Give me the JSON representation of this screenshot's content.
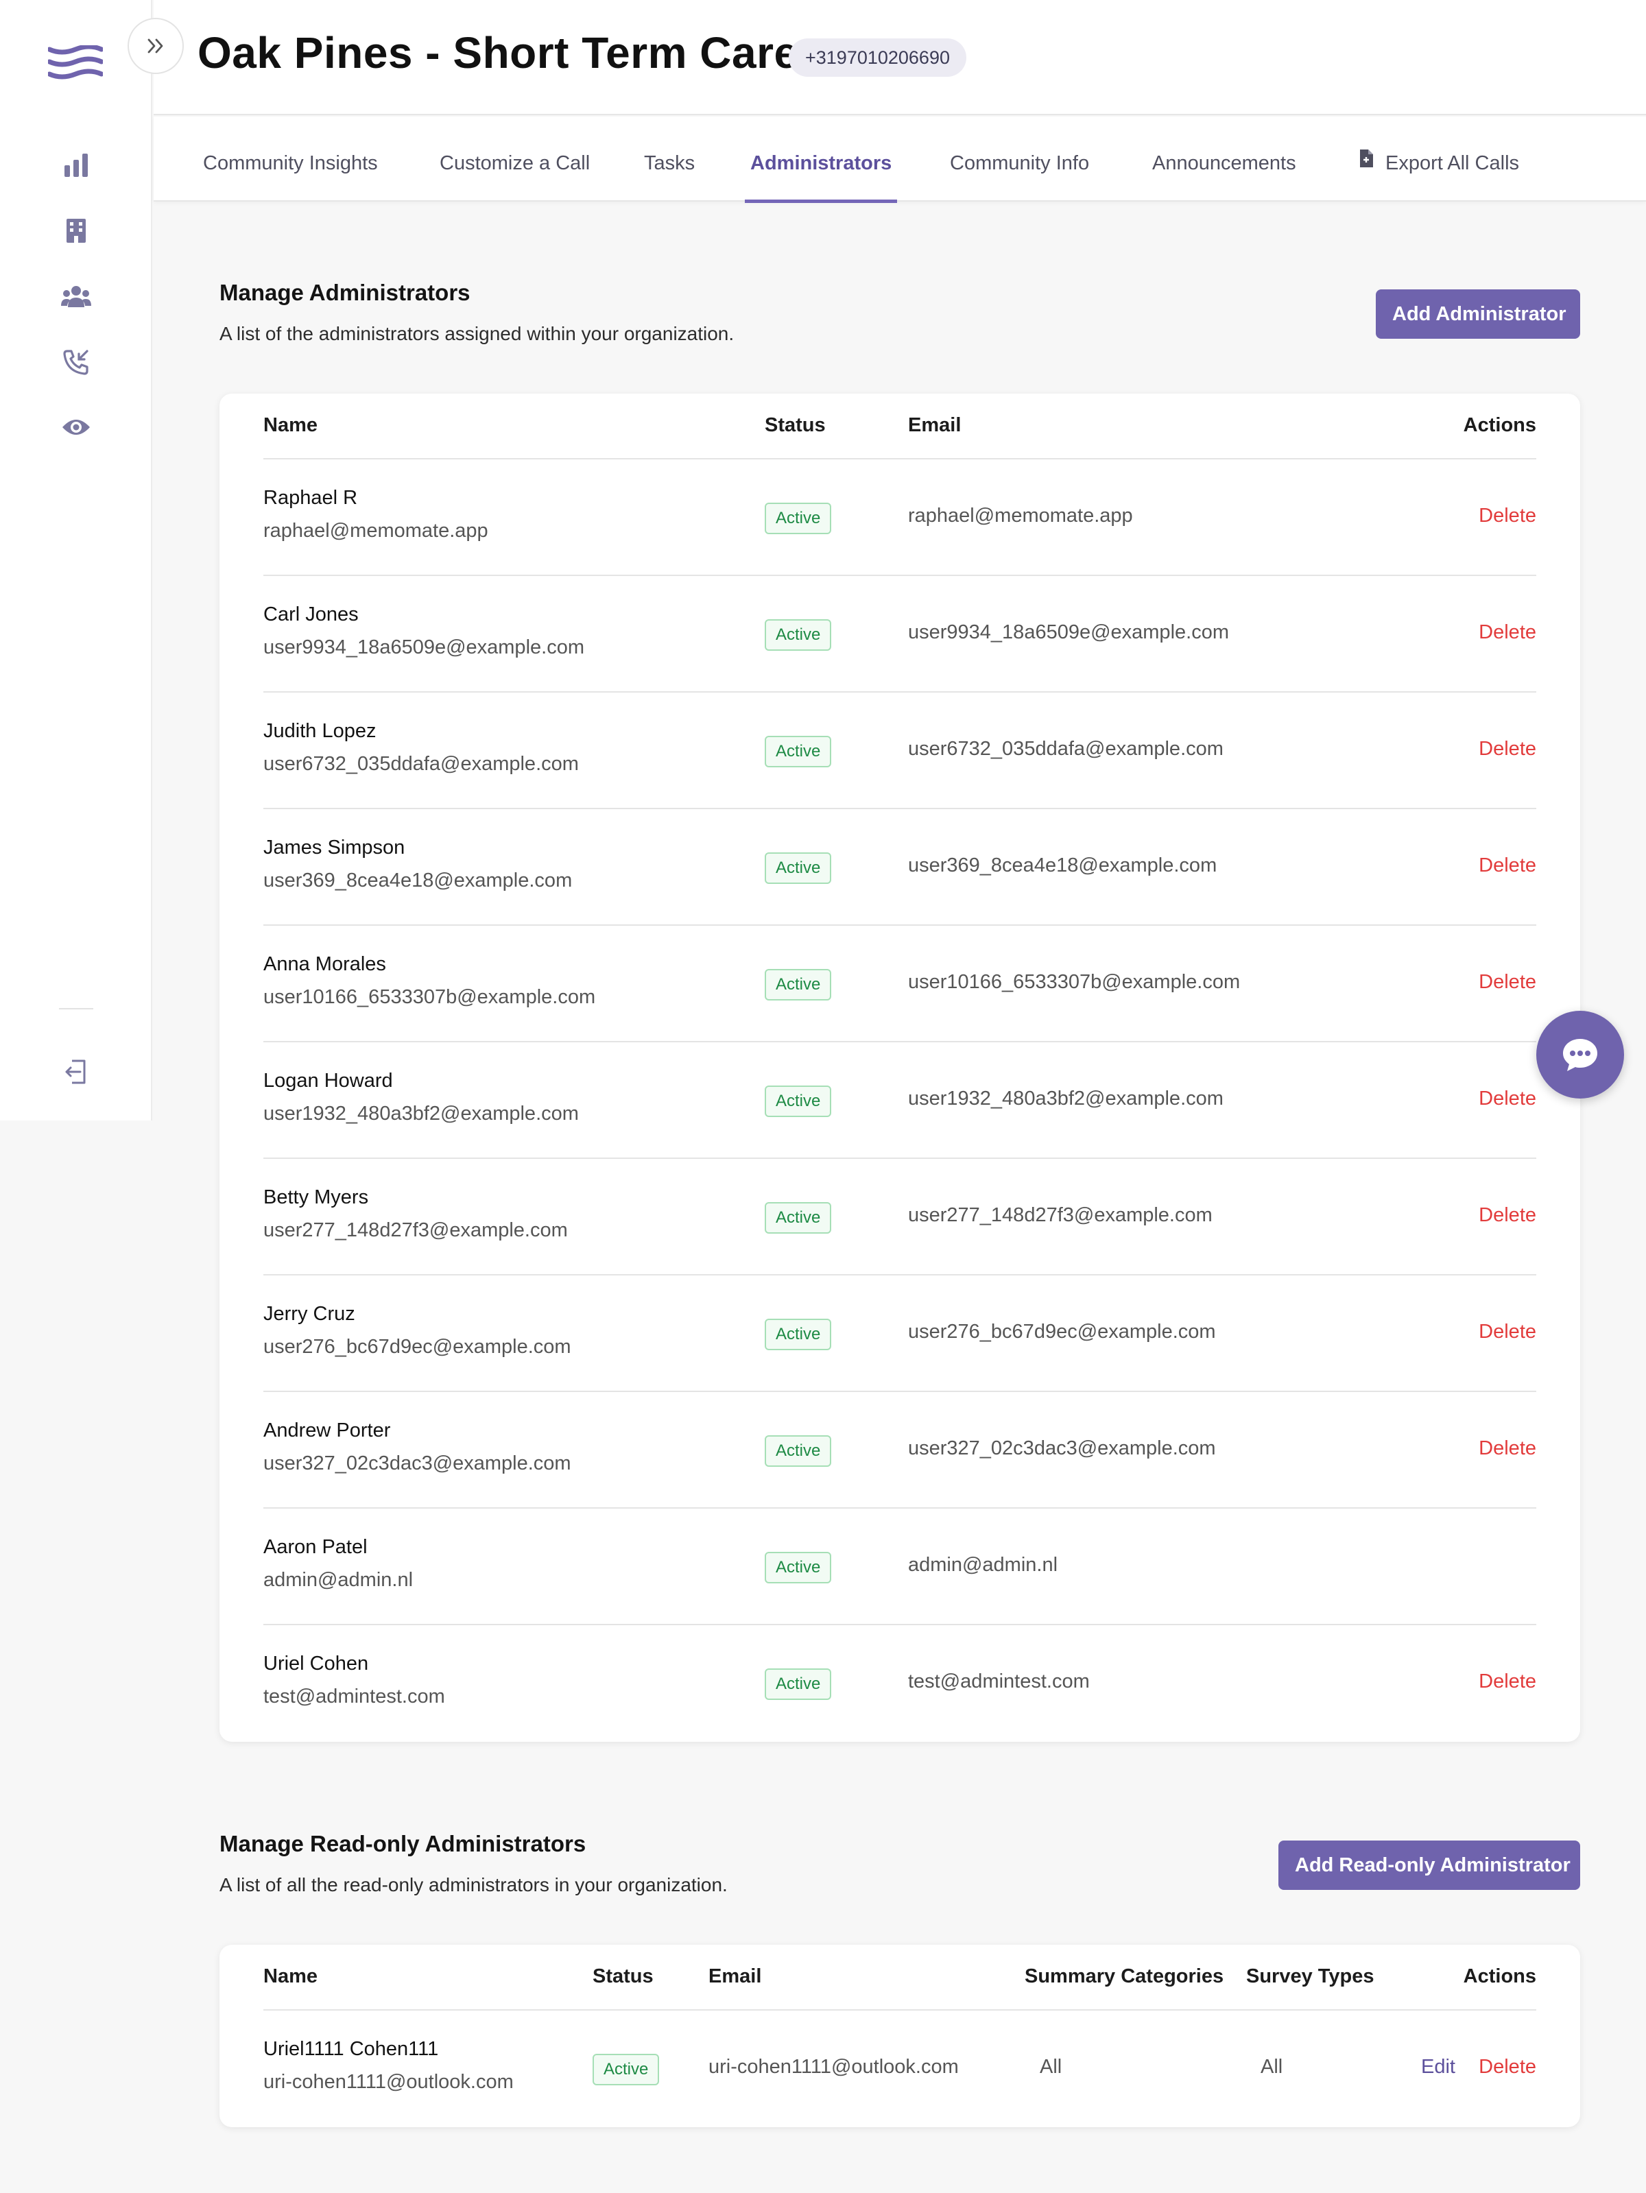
{
  "header": {
    "title": "Oak Pines - Short Term Care",
    "phone": "+3197010206690"
  },
  "sidebar": {
    "icons": [
      "bar-chart-icon",
      "building-icon",
      "group-icon",
      "incoming-call-icon",
      "eye-icon",
      "logout-icon"
    ]
  },
  "tabs": [
    {
      "label": "Community Insights"
    },
    {
      "label": "Customize a Call"
    },
    {
      "label": "Tasks"
    },
    {
      "label": "Administrators"
    },
    {
      "label": "Community Info"
    },
    {
      "label": "Announcements"
    },
    {
      "label": "Export All Calls"
    }
  ],
  "active_tab": "Administrators",
  "admins": {
    "title": "Manage Administrators",
    "description": "A list of the administrators assigned within your organization.",
    "add_button": "Add Administrator",
    "columns": {
      "name": "Name",
      "status": "Status",
      "email": "Email",
      "actions": "Actions"
    },
    "rows": [
      {
        "name": "Raphael R",
        "sub": "raphael@memomate.app",
        "status": "Active",
        "email": "raphael@memomate.app",
        "action": "Delete"
      },
      {
        "name": "Carl Jones",
        "sub": "user9934_18a6509e@example.com",
        "status": "Active",
        "email": "user9934_18a6509e@example.com",
        "action": "Delete"
      },
      {
        "name": "Judith Lopez",
        "sub": "user6732_035ddafa@example.com",
        "status": "Active",
        "email": "user6732_035ddafa@example.com",
        "action": "Delete"
      },
      {
        "name": "James Simpson",
        "sub": "user369_8cea4e18@example.com",
        "status": "Active",
        "email": "user369_8cea4e18@example.com",
        "action": "Delete"
      },
      {
        "name": "Anna Morales",
        "sub": "user10166_6533307b@example.com",
        "status": "Active",
        "email": "user10166_6533307b@example.com",
        "action": "Delete"
      },
      {
        "name": "Logan Howard",
        "sub": "user1932_480a3bf2@example.com",
        "status": "Active",
        "email": "user1932_480a3bf2@example.com",
        "action": "Delete"
      },
      {
        "name": "Betty Myers",
        "sub": "user277_148d27f3@example.com",
        "status": "Active",
        "email": "user277_148d27f3@example.com",
        "action": "Delete"
      },
      {
        "name": "Jerry Cruz",
        "sub": "user276_bc67d9ec@example.com",
        "status": "Active",
        "email": "user276_bc67d9ec@example.com",
        "action": "Delete"
      },
      {
        "name": "Andrew Porter",
        "sub": "user327_02c3dac3@example.com",
        "status": "Active",
        "email": "user327_02c3dac3@example.com",
        "action": "Delete"
      },
      {
        "name": "Aaron Patel",
        "sub": "admin@admin.nl",
        "status": "Active",
        "email": "admin@admin.nl",
        "action": ""
      },
      {
        "name": "Uriel Cohen",
        "sub": "test@admintest.com",
        "status": "Active",
        "email": "test@admintest.com",
        "action": "Delete"
      }
    ]
  },
  "readonly": {
    "title": "Manage Read-only Administrators",
    "description": "A list of all the read-only administrators in your organization.",
    "add_button": "Add Read-only Administrator",
    "columns": {
      "name": "Name",
      "status": "Status",
      "email": "Email",
      "summary": "Summary Categories",
      "survey": "Survey Types",
      "actions": "Actions"
    },
    "rows": [
      {
        "name": "Uriel1111 Cohen111",
        "sub": "uri-cohen1111@outlook.com",
        "status": "Active",
        "email": "uri-cohen1111@outlook.com",
        "summary": "All",
        "survey": "All",
        "edit": "Edit",
        "delete": "Delete"
      }
    ]
  },
  "colors": {
    "accent": "#6f63ad",
    "active_tab": "#5c509c",
    "danger": "#e23b3b",
    "status_green": "#1d8a44"
  }
}
